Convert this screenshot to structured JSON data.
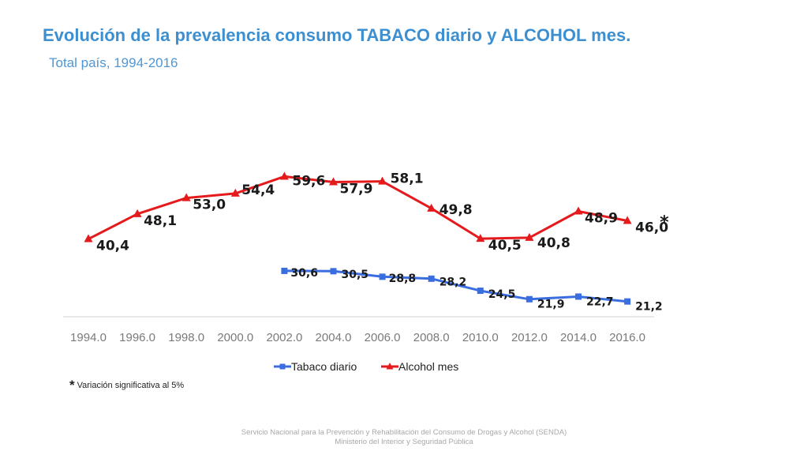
{
  "header": {
    "title": "Evolución de la prevalencia consumo TABACO diario y ALCOHOL mes.",
    "subtitle": "Total país, 1994-2016"
  },
  "chart_data": {
    "type": "line",
    "x": [
      "1994.0",
      "1996.0",
      "1998.0",
      "2000.0",
      "2002.0",
      "2004.0",
      "2006.0",
      "2008.0",
      "2010.0",
      "2012.0",
      "2014.0",
      "2016.0"
    ],
    "series": [
      {
        "name": "Tabaco diario",
        "color": "#3a6ee0",
        "marker": "square",
        "values": [
          null,
          null,
          null,
          null,
          30.6,
          30.5,
          28.8,
          28.2,
          24.5,
          21.9,
          22.7,
          21.2
        ],
        "labels": [
          "",
          "",
          "",
          "",
          "30,6",
          "30,5",
          "28,8",
          "28,2",
          "24,5",
          "21,9",
          "22,7",
          "21,2"
        ]
      },
      {
        "name": "Alcohol mes",
        "color": "#e41a1c",
        "marker": "triangle",
        "values": [
          40.4,
          48.1,
          53.0,
          54.4,
          59.6,
          57.9,
          58.1,
          49.8,
          40.5,
          40.8,
          48.9,
          46.0
        ],
        "labels": [
          "40,4",
          "48,1",
          "53,0",
          "54,4",
          "59,6",
          "57,9",
          "58,1",
          "49,8",
          "40,5",
          "40,8",
          "48,9",
          "46,0"
        ]
      }
    ],
    "annotations": [
      {
        "text": "*",
        "series": "Alcohol mes",
        "x": "2016.0"
      }
    ],
    "legend": "bottom",
    "grid": false
  },
  "note": {
    "symbol": "*",
    "text": "Variación significativa al 5%"
  },
  "footer": {
    "line1": "Servicio Nacional para la Prevención y Rehabilitación del Consumo de Drogas y Alcohol (SENDA)",
    "line2": "Ministerio del Interior y Seguridad Pública"
  }
}
